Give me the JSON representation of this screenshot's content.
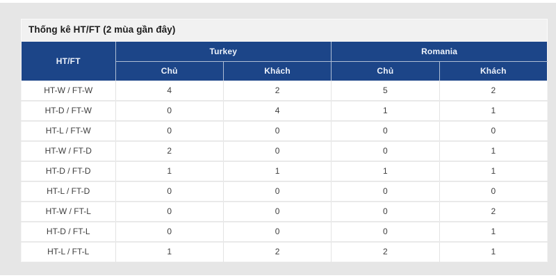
{
  "page": {
    "background_color": "#e6e6e6",
    "card_background": "#ffffff"
  },
  "panel": {
    "title": "Thống kê HT/FT (2 mùa gần đây)"
  },
  "table": {
    "corner_label": "HT/FT",
    "groups": [
      {
        "label": "Turkey",
        "columns": [
          "Chủ",
          "Khách"
        ]
      },
      {
        "label": "Romania",
        "columns": [
          "Chủ",
          "Khách"
        ]
      }
    ],
    "rows": [
      {
        "label": "HT-W / FT-W",
        "values": [
          "4",
          "2",
          "5",
          "2"
        ]
      },
      {
        "label": "HT-D / FT-W",
        "values": [
          "0",
          "4",
          "1",
          "1"
        ]
      },
      {
        "label": "HT-L / FT-W",
        "values": [
          "0",
          "0",
          "0",
          "0"
        ]
      },
      {
        "label": "HT-W / FT-D",
        "values": [
          "2",
          "0",
          "0",
          "1"
        ]
      },
      {
        "label": "HT-D / FT-D",
        "values": [
          "1",
          "1",
          "1",
          "1"
        ]
      },
      {
        "label": "HT-L / FT-D",
        "values": [
          "0",
          "0",
          "0",
          "0"
        ]
      },
      {
        "label": "HT-W / FT-L",
        "values": [
          "0",
          "0",
          "0",
          "2"
        ]
      },
      {
        "label": "HT-D / FT-L",
        "values": [
          "0",
          "0",
          "0",
          "1"
        ]
      },
      {
        "label": "HT-L / FT-L",
        "values": [
          "1",
          "2",
          "2",
          "1"
        ]
      }
    ],
    "colors": {
      "header_bg": "#1c4588",
      "header_text": "#eef3fb",
      "body_text": "#3d3d3d",
      "title_bar_bg": "#f1f1f1"
    }
  },
  "chart_data": {
    "type": "table",
    "title": "Thống kê HT/FT (2 mùa gần đây)",
    "column_groups": [
      "Turkey",
      "Turkey",
      "Romania",
      "Romania"
    ],
    "columns": [
      "Chủ",
      "Khách",
      "Chủ",
      "Khách"
    ],
    "row_labels": [
      "HT-W / FT-W",
      "HT-D / FT-W",
      "HT-L / FT-W",
      "HT-W / FT-D",
      "HT-D / FT-D",
      "HT-L / FT-D",
      "HT-W / FT-L",
      "HT-D / FT-L",
      "HT-L / FT-L"
    ],
    "values": [
      [
        4,
        2,
        5,
        2
      ],
      [
        0,
        4,
        1,
        1
      ],
      [
        0,
        0,
        0,
        0
      ],
      [
        2,
        0,
        0,
        1
      ],
      [
        1,
        1,
        1,
        1
      ],
      [
        0,
        0,
        0,
        0
      ],
      [
        0,
        0,
        0,
        2
      ],
      [
        0,
        0,
        0,
        1
      ],
      [
        1,
        2,
        2,
        1
      ]
    ]
  }
}
